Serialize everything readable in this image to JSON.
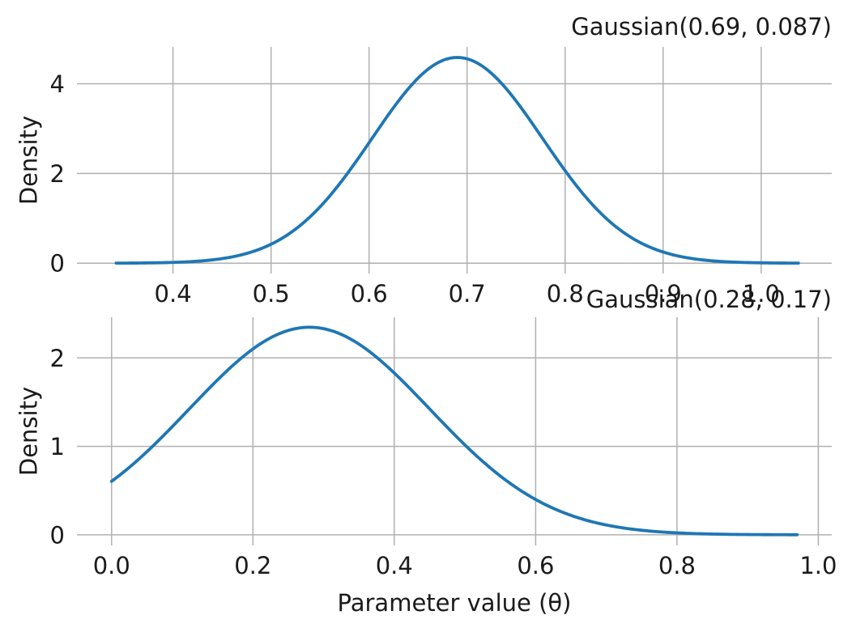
{
  "figure": {
    "background": "#ffffff",
    "grid_color": "#b0b0b0",
    "text_color": "#1a1a1a",
    "accent_color": "#1f77b4"
  },
  "chart_data": [
    {
      "type": "line",
      "title": "Gaussian(0.69, 0.087)",
      "title_loc": "right",
      "xlabel": "",
      "ylabel": "Density",
      "legend": "none",
      "grid": true,
      "line_color": "#1f77b4",
      "gaussian_mean": 0.69,
      "gaussian_std": 0.087,
      "peak_density": 4.59,
      "x_domain": [
        0.342,
        1.038
      ],
      "xlim": [
        0.302,
        1.072
      ],
      "ylim": [
        -0.23,
        4.82
      ],
      "xtick_values": [
        0.4,
        0.5,
        0.6,
        0.7,
        0.8,
        0.9,
        1.0
      ],
      "xtick_labels": [
        "0.4",
        "0.5",
        "0.6",
        "0.7",
        "0.8",
        "0.9",
        "1.0"
      ],
      "ytick_values": [
        0,
        2,
        4
      ],
      "ytick_labels": [
        "0",
        "2",
        "4"
      ],
      "series": [
        {
          "name": "Gaussian(0.69, 0.087) pdf",
          "x": [
            0.342,
            0.4,
            0.45,
            0.5,
            0.55,
            0.6,
            0.65,
            0.69,
            0.73,
            0.78,
            0.83,
            0.88,
            0.93,
            0.98,
            1.038
          ],
          "y": [
            0.002,
            0.018,
            0.102,
            0.422,
            1.256,
            2.686,
            4.126,
            4.586,
            4.126,
            2.686,
            1.256,
            0.422,
            0.102,
            0.018,
            0.002
          ]
        }
      ]
    },
    {
      "type": "line",
      "title": "Gaussian(0.28, 0.17)",
      "title_loc": "right",
      "xlabel": "Parameter value (θ)",
      "ylabel": "Density",
      "legend": "none",
      "grid": true,
      "line_color": "#1f77b4",
      "gaussian_mean": 0.28,
      "gaussian_std": 0.17,
      "peak_density": 2.35,
      "x_domain": [
        0.0,
        0.97
      ],
      "xlim": [
        -0.049,
        1.019
      ],
      "ylim": [
        -0.12,
        2.46
      ],
      "xtick_values": [
        0.0,
        0.2,
        0.4,
        0.6,
        0.8,
        1.0
      ],
      "xtick_labels": [
        "0.0",
        "0.2",
        "0.4",
        "0.6",
        "0.8",
        "1.0"
      ],
      "ytick_values": [
        0,
        1,
        2
      ],
      "ytick_labels": [
        "0",
        "1",
        "2"
      ],
      "series": [
        {
          "name": "Gaussian(0.28, 0.17) pdf",
          "x": [
            0.0,
            0.05,
            0.1,
            0.15,
            0.2,
            0.25,
            0.28,
            0.32,
            0.37,
            0.42,
            0.47,
            0.52,
            0.57,
            0.62,
            0.67,
            0.72,
            0.77,
            0.82,
            0.87,
            0.92,
            0.97
          ],
          "y": [
            0.605,
            0.94,
            1.34,
            1.751,
            2.101,
            2.31,
            2.347,
            2.283,
            2.04,
            1.672,
            1.257,
            0.866,
            0.548,
            0.318,
            0.169,
            0.082,
            0.037,
            0.015,
            0.006,
            0.002,
            0.001
          ]
        }
      ]
    }
  ]
}
